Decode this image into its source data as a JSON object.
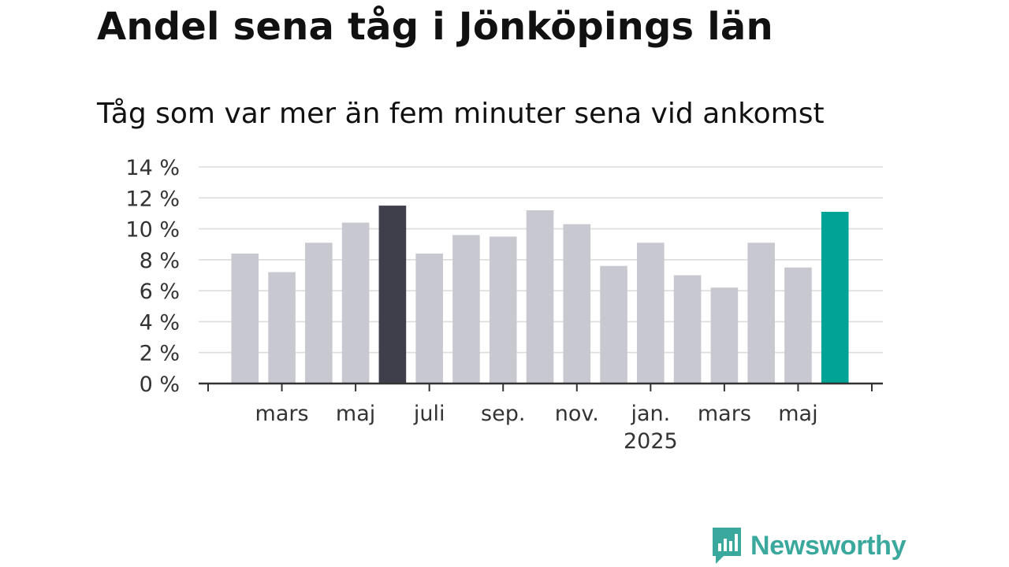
{
  "title": "Andel sena tåg i Jönköpings län",
  "subtitle": "Tåg som var mer än fem minuter sena vid ankomst",
  "brand": "Newsworthy",
  "colors": {
    "bar": "#c8c8d0",
    "highlight_previous_year": "#3f3f4b",
    "highlight_latest": "#00a396",
    "grid": "#dcdcdc",
    "axis": "#333333"
  },
  "chart_data": {
    "type": "bar",
    "title": "Andel sena tåg i Jönköpings län",
    "subtitle": "Tåg som var mer än fem minuter sena vid ankomst",
    "xlabel": "",
    "ylabel": "",
    "ylim": [
      0,
      14
    ],
    "yticks": [
      "0 %",
      "2 %",
      "4 %",
      "6 %",
      "8 %",
      "10 %",
      "12 %",
      "14 %"
    ],
    "xticks": [
      {
        "label": "mars",
        "year": ""
      },
      {
        "label": "maj",
        "year": ""
      },
      {
        "label": "juli",
        "year": ""
      },
      {
        "label": "sep.",
        "year": ""
      },
      {
        "label": "nov.",
        "year": ""
      },
      {
        "label": "jan.",
        "year": "2025"
      },
      {
        "label": "mars",
        "year": ""
      },
      {
        "label": "maj",
        "year": ""
      }
    ],
    "categories": [
      "2024-02",
      "2024-03",
      "2024-04",
      "2024-05",
      "2024-06",
      "2024-07",
      "2024-08",
      "2024-09",
      "2024-10",
      "2024-11",
      "2024-12",
      "2025-01",
      "2025-02",
      "2025-03",
      "2025-04",
      "2025-05",
      "2025-06"
    ],
    "values": [
      8.4,
      7.2,
      9.1,
      10.4,
      11.5,
      8.4,
      9.6,
      9.5,
      11.2,
      10.3,
      7.6,
      9.1,
      7.0,
      6.2,
      9.1,
      7.5,
      11.1
    ],
    "highlight": {
      "2024-06": "highlight_previous_year",
      "2025-06": "highlight_latest"
    },
    "grid": true,
    "legend": "none"
  }
}
